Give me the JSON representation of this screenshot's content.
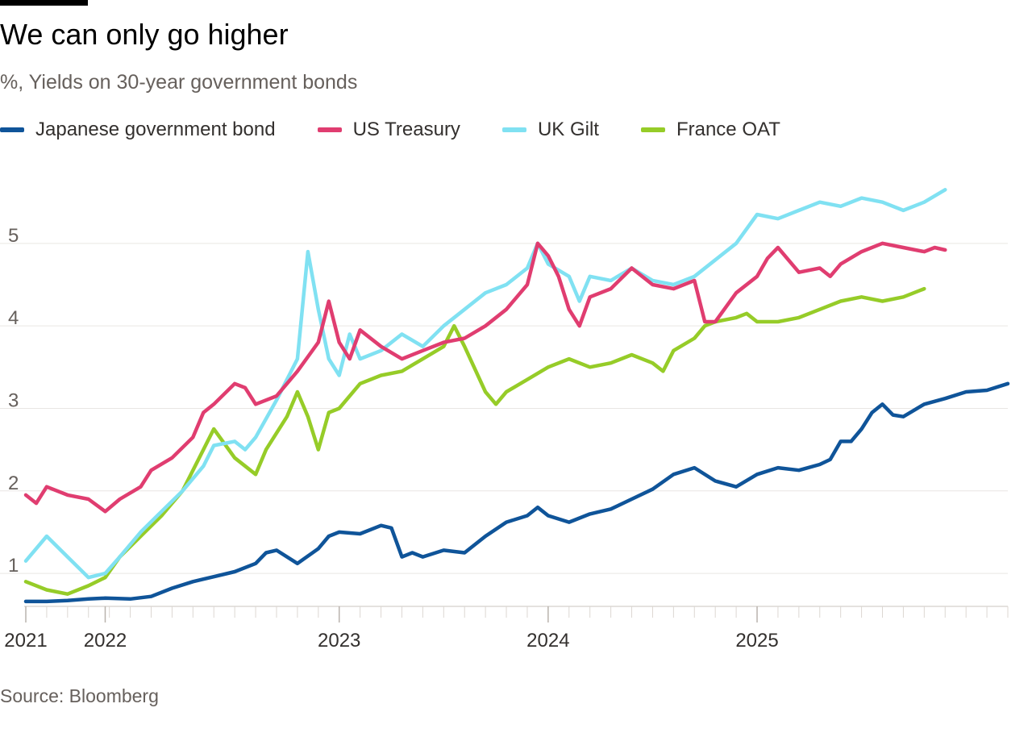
{
  "header": {
    "title": "We can only go higher",
    "subtitle": "%, Yields on 30-year government bonds"
  },
  "footer": {
    "source": "Source: Bloomberg"
  },
  "chart_data": {
    "type": "line",
    "title": "We can only go higher",
    "subtitle": "%, Yields on 30-year government bonds",
    "xlabel": "",
    "ylabel": "%",
    "ylim": [
      0.6,
      5.8
    ],
    "xlim": [
      2021.0,
      2025.7
    ],
    "yticks": [
      1,
      2,
      3,
      4,
      5
    ],
    "grid": true,
    "legend_position": "top",
    "xtick_labels": [
      {
        "label": "2021",
        "x": 2021.0
      },
      {
        "label": "2022",
        "x": 2021.38
      },
      {
        "label": "2023",
        "x": 2022.5
      },
      {
        "label": "2024",
        "x": 2023.5
      },
      {
        "label": "2025",
        "x": 2024.5
      }
    ],
    "series": [
      {
        "name": "Japanese government bond",
        "color": "#0f5499",
        "points": [
          [
            2021.0,
            0.66
          ],
          [
            2021.1,
            0.66
          ],
          [
            2021.2,
            0.67
          ],
          [
            2021.3,
            0.69
          ],
          [
            2021.38,
            0.7
          ],
          [
            2021.5,
            0.69
          ],
          [
            2021.6,
            0.72
          ],
          [
            2021.7,
            0.82
          ],
          [
            2021.8,
            0.9
          ],
          [
            2021.9,
            0.96
          ],
          [
            2022.0,
            1.02
          ],
          [
            2022.1,
            1.12
          ],
          [
            2022.15,
            1.25
          ],
          [
            2022.2,
            1.28
          ],
          [
            2022.3,
            1.12
          ],
          [
            2022.4,
            1.3
          ],
          [
            2022.45,
            1.45
          ],
          [
            2022.5,
            1.5
          ],
          [
            2022.6,
            1.48
          ],
          [
            2022.7,
            1.58
          ],
          [
            2022.75,
            1.55
          ],
          [
            2022.8,
            1.2
          ],
          [
            2022.85,
            1.25
          ],
          [
            2022.9,
            1.2
          ],
          [
            2023.0,
            1.28
          ],
          [
            2023.1,
            1.25
          ],
          [
            2023.2,
            1.45
          ],
          [
            2023.3,
            1.62
          ],
          [
            2023.4,
            1.7
          ],
          [
            2023.45,
            1.8
          ],
          [
            2023.5,
            1.7
          ],
          [
            2023.6,
            1.62
          ],
          [
            2023.7,
            1.72
          ],
          [
            2023.8,
            1.78
          ],
          [
            2023.9,
            1.9
          ],
          [
            2024.0,
            2.02
          ],
          [
            2024.1,
            2.2
          ],
          [
            2024.2,
            2.28
          ],
          [
            2024.3,
            2.12
          ],
          [
            2024.4,
            2.05
          ],
          [
            2024.5,
            2.2
          ],
          [
            2024.6,
            2.28
          ],
          [
            2024.7,
            2.25
          ],
          [
            2024.8,
            2.32
          ],
          [
            2024.85,
            2.38
          ],
          [
            2024.9,
            2.6
          ],
          [
            2024.95,
            2.6
          ],
          [
            2025.0,
            2.75
          ],
          [
            2025.05,
            2.95
          ],
          [
            2025.1,
            3.05
          ],
          [
            2025.15,
            2.92
          ],
          [
            2025.2,
            2.9
          ],
          [
            2025.3,
            3.05
          ],
          [
            2025.4,
            3.12
          ],
          [
            2025.5,
            3.2
          ],
          [
            2025.6,
            3.22
          ],
          [
            2025.7,
            3.3
          ]
        ]
      },
      {
        "name": "US Treasury",
        "color": "#e03d70",
        "points": [
          [
            2021.0,
            1.95
          ],
          [
            2021.05,
            1.85
          ],
          [
            2021.1,
            2.05
          ],
          [
            2021.2,
            1.95
          ],
          [
            2021.3,
            1.9
          ],
          [
            2021.38,
            1.75
          ],
          [
            2021.45,
            1.9
          ],
          [
            2021.55,
            2.05
          ],
          [
            2021.6,
            2.25
          ],
          [
            2021.7,
            2.4
          ],
          [
            2021.8,
            2.65
          ],
          [
            2021.85,
            2.95
          ],
          [
            2021.9,
            3.05
          ],
          [
            2022.0,
            3.3
          ],
          [
            2022.05,
            3.25
          ],
          [
            2022.1,
            3.05
          ],
          [
            2022.2,
            3.15
          ],
          [
            2022.3,
            3.45
          ],
          [
            2022.4,
            3.8
          ],
          [
            2022.45,
            4.3
          ],
          [
            2022.5,
            3.8
          ],
          [
            2022.55,
            3.6
          ],
          [
            2022.6,
            3.95
          ],
          [
            2022.7,
            3.75
          ],
          [
            2022.8,
            3.6
          ],
          [
            2022.9,
            3.7
          ],
          [
            2023.0,
            3.8
          ],
          [
            2023.1,
            3.85
          ],
          [
            2023.2,
            4.0
          ],
          [
            2023.3,
            4.2
          ],
          [
            2023.4,
            4.5
          ],
          [
            2023.45,
            5.0
          ],
          [
            2023.5,
            4.85
          ],
          [
            2023.55,
            4.6
          ],
          [
            2023.6,
            4.2
          ],
          [
            2023.65,
            4.0
          ],
          [
            2023.7,
            4.35
          ],
          [
            2023.8,
            4.45
          ],
          [
            2023.9,
            4.7
          ],
          [
            2024.0,
            4.5
          ],
          [
            2024.1,
            4.45
          ],
          [
            2024.2,
            4.55
          ],
          [
            2024.25,
            4.05
          ],
          [
            2024.3,
            4.05
          ],
          [
            2024.4,
            4.4
          ],
          [
            2024.5,
            4.6
          ],
          [
            2024.55,
            4.82
          ],
          [
            2024.6,
            4.95
          ],
          [
            2024.7,
            4.65
          ],
          [
            2024.8,
            4.7
          ],
          [
            2024.85,
            4.6
          ],
          [
            2024.9,
            4.75
          ],
          [
            2025.0,
            4.9
          ],
          [
            2025.1,
            5.0
          ],
          [
            2025.2,
            4.95
          ],
          [
            2025.3,
            4.9
          ],
          [
            2025.35,
            4.95
          ],
          [
            2025.4,
            4.92
          ]
        ]
      },
      {
        "name": "UK Gilt",
        "color": "#80e1f2",
        "points": [
          [
            2021.0,
            1.15
          ],
          [
            2021.1,
            1.45
          ],
          [
            2021.2,
            1.2
          ],
          [
            2021.3,
            0.95
          ],
          [
            2021.38,
            1.0
          ],
          [
            2021.45,
            1.2
          ],
          [
            2021.55,
            1.5
          ],
          [
            2021.65,
            1.75
          ],
          [
            2021.75,
            2.0
          ],
          [
            2021.85,
            2.3
          ],
          [
            2021.9,
            2.55
          ],
          [
            2022.0,
            2.6
          ],
          [
            2022.05,
            2.5
          ],
          [
            2022.1,
            2.65
          ],
          [
            2022.2,
            3.1
          ],
          [
            2022.3,
            3.6
          ],
          [
            2022.35,
            4.9
          ],
          [
            2022.4,
            4.2
          ],
          [
            2022.45,
            3.6
          ],
          [
            2022.5,
            3.4
          ],
          [
            2022.55,
            3.9
          ],
          [
            2022.6,
            3.6
          ],
          [
            2022.7,
            3.7
          ],
          [
            2022.8,
            3.9
          ],
          [
            2022.9,
            3.75
          ],
          [
            2023.0,
            4.0
          ],
          [
            2023.1,
            4.2
          ],
          [
            2023.2,
            4.4
          ],
          [
            2023.3,
            4.5
          ],
          [
            2023.4,
            4.7
          ],
          [
            2023.45,
            5.0
          ],
          [
            2023.5,
            4.75
          ],
          [
            2023.6,
            4.6
          ],
          [
            2023.65,
            4.3
          ],
          [
            2023.7,
            4.6
          ],
          [
            2023.8,
            4.55
          ],
          [
            2023.9,
            4.7
          ],
          [
            2024.0,
            4.55
          ],
          [
            2024.1,
            4.5
          ],
          [
            2024.2,
            4.6
          ],
          [
            2024.3,
            4.8
          ],
          [
            2024.4,
            5.0
          ],
          [
            2024.5,
            5.35
          ],
          [
            2024.6,
            5.3
          ],
          [
            2024.7,
            5.4
          ],
          [
            2024.8,
            5.5
          ],
          [
            2024.9,
            5.45
          ],
          [
            2025.0,
            5.55
          ],
          [
            2025.1,
            5.5
          ],
          [
            2025.2,
            5.4
          ],
          [
            2025.3,
            5.5
          ],
          [
            2025.4,
            5.65
          ]
        ]
      },
      {
        "name": "France OAT",
        "color": "#96cc28",
        "points": [
          [
            2021.0,
            0.9
          ],
          [
            2021.1,
            0.8
          ],
          [
            2021.2,
            0.75
          ],
          [
            2021.3,
            0.85
          ],
          [
            2021.38,
            0.95
          ],
          [
            2021.45,
            1.2
          ],
          [
            2021.55,
            1.45
          ],
          [
            2021.65,
            1.7
          ],
          [
            2021.75,
            2.0
          ],
          [
            2021.85,
            2.5
          ],
          [
            2021.9,
            2.75
          ],
          [
            2022.0,
            2.4
          ],
          [
            2022.1,
            2.2
          ],
          [
            2022.15,
            2.5
          ],
          [
            2022.25,
            2.9
          ],
          [
            2022.3,
            3.2
          ],
          [
            2022.35,
            2.9
          ],
          [
            2022.4,
            2.5
          ],
          [
            2022.45,
            2.95
          ],
          [
            2022.5,
            3.0
          ],
          [
            2022.6,
            3.3
          ],
          [
            2022.7,
            3.4
          ],
          [
            2022.8,
            3.45
          ],
          [
            2022.9,
            3.6
          ],
          [
            2023.0,
            3.75
          ],
          [
            2023.05,
            4.0
          ],
          [
            2023.1,
            3.75
          ],
          [
            2023.2,
            3.2
          ],
          [
            2023.25,
            3.05
          ],
          [
            2023.3,
            3.2
          ],
          [
            2023.4,
            3.35
          ],
          [
            2023.5,
            3.5
          ],
          [
            2023.6,
            3.6
          ],
          [
            2023.7,
            3.5
          ],
          [
            2023.8,
            3.55
          ],
          [
            2023.9,
            3.65
          ],
          [
            2024.0,
            3.55
          ],
          [
            2024.05,
            3.45
          ],
          [
            2024.1,
            3.7
          ],
          [
            2024.2,
            3.85
          ],
          [
            2024.25,
            4.0
          ],
          [
            2024.3,
            4.05
          ],
          [
            2024.4,
            4.1
          ],
          [
            2024.45,
            4.15
          ],
          [
            2024.5,
            4.05
          ],
          [
            2024.6,
            4.05
          ],
          [
            2024.7,
            4.1
          ],
          [
            2024.8,
            4.2
          ],
          [
            2024.9,
            4.3
          ],
          [
            2025.0,
            4.35
          ],
          [
            2025.1,
            4.3
          ],
          [
            2025.2,
            4.35
          ],
          [
            2025.3,
            4.45
          ]
        ]
      }
    ]
  }
}
